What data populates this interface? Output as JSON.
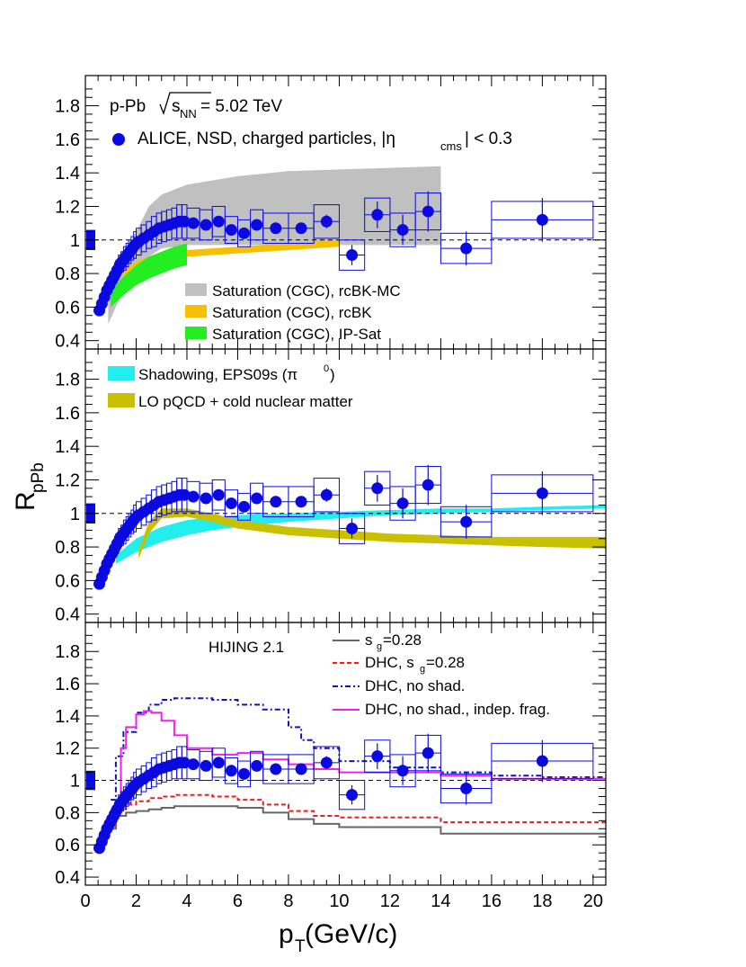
{
  "figure": {
    "y_axis_label": "R",
    "y_axis_label_sub": "pPb",
    "x_axis_label": "p",
    "x_axis_label_sub": "T",
    "x_axis_unit": " (GeV/c)"
  },
  "chart_data": [
    {
      "type": "scatter",
      "panel": "top",
      "xlim": [
        0,
        20.5
      ],
      "ylim": [
        0.35,
        1.98
      ],
      "y_ticks": [
        "0.4",
        "0.6",
        "0.8",
        "1",
        "1.2",
        "1.4",
        "1.6",
        "1.8"
      ],
      "reference_line": 1,
      "annotations": {
        "system": "p-Pb",
        "energy_var": "s",
        "energy_sub": "NN",
        "energy_value": " = 5.02 TeV",
        "data_label_pre": "ALICE, NSD, charged particles, |η",
        "data_label_sub": "cms",
        "data_label_post": "| < 0.3"
      },
      "bands": [
        {
          "name": "Saturation (CGC), rcBK-MC",
          "color": "#c0c0c0",
          "x": [
            0.9,
            1.5,
            2,
            2.5,
            3,
            4,
            6,
            8,
            10,
            12,
            14
          ],
          "lo": [
            0.5,
            0.7,
            0.8,
            0.9,
            0.95,
            0.97,
            0.97,
            0.97,
            0.97,
            0.97,
            0.97
          ],
          "hi": [
            0.65,
            0.9,
            1.05,
            1.2,
            1.27,
            1.33,
            1.38,
            1.41,
            1.42,
            1.43,
            1.44
          ]
        },
        {
          "name": "Saturation (CGC), rcBK",
          "color": "#f5c000",
          "x": [
            1.5,
            2,
            2.5,
            3,
            4,
            6,
            8,
            10
          ],
          "lo": [
            0.78,
            0.83,
            0.86,
            0.88,
            0.9,
            0.92,
            0.94,
            0.96
          ],
          "hi": [
            0.82,
            0.87,
            0.9,
            0.92,
            0.94,
            0.96,
            0.98,
            1.0
          ]
        },
        {
          "name": "Saturation (CGC), IP-Sat",
          "color": "#22ee22",
          "x": [
            1.0,
            1.5,
            2,
            2.5,
            3,
            3.5,
            4
          ],
          "lo": [
            0.6,
            0.67,
            0.73,
            0.77,
            0.8,
            0.83,
            0.85
          ],
          "hi": [
            0.7,
            0.78,
            0.85,
            0.9,
            0.93,
            0.96,
            0.98
          ]
        }
      ]
    },
    {
      "type": "scatter",
      "panel": "middle",
      "xlim": [
        0,
        20.5
      ],
      "ylim": [
        0.35,
        1.98
      ],
      "y_ticks": [
        "0.4",
        "0.6",
        "0.8",
        "1",
        "1.2",
        "1.4",
        "1.6",
        "1.8"
      ],
      "reference_line": 1,
      "bands": [
        {
          "name": "Shadowing, EPS09s (π",
          "name_sup": "0",
          "name_post": ")",
          "color": "#22eeee",
          "x": [
            1.2,
            2,
            3,
            4,
            5,
            6,
            8,
            10,
            12,
            14,
            16,
            18,
            20.5
          ],
          "lo": [
            0.7,
            0.77,
            0.83,
            0.87,
            0.9,
            0.92,
            0.95,
            0.97,
            0.99,
            1.0,
            1.01,
            1.02,
            1.03
          ],
          "hi": [
            0.75,
            0.85,
            0.92,
            0.96,
            0.98,
            0.99,
            1.0,
            1.01,
            1.02,
            1.03,
            1.03,
            1.04,
            1.05
          ]
        },
        {
          "name": "LO pQCD + cold nuclear matter",
          "color": "#c8c000",
          "x": [
            2.1,
            2.5,
            3,
            4,
            5,
            6,
            8,
            10,
            12,
            14,
            16,
            18,
            20.5
          ],
          "lo": [
            0.73,
            0.88,
            0.97,
            0.98,
            0.95,
            0.91,
            0.87,
            0.85,
            0.83,
            0.82,
            0.81,
            0.8,
            0.79
          ],
          "hi": [
            0.78,
            0.95,
            1.03,
            1.03,
            1.0,
            0.96,
            0.92,
            0.9,
            0.88,
            0.87,
            0.86,
            0.86,
            0.86
          ]
        }
      ]
    },
    {
      "type": "line",
      "panel": "bottom",
      "xlim": [
        0,
        20.5
      ],
      "ylim": [
        0.35,
        1.98
      ],
      "x_ticks": [
        "0",
        "2",
        "4",
        "6",
        "8",
        "10",
        "12",
        "14",
        "16",
        "18",
        "20"
      ],
      "y_ticks": [
        "0.4",
        "0.6",
        "0.8",
        "1",
        "1.2",
        "1.4",
        "1.6",
        "1.8"
      ],
      "reference_line": 1,
      "annotations": {
        "model": "HIJING 2.1"
      },
      "series": [
        {
          "name": "s",
          "name_sub": "g",
          "name_post": "=0.28",
          "color": "#666666",
          "style": "solid",
          "x": [
            0.8,
            1.2,
            1.6,
            2,
            2.5,
            3,
            3.5,
            4,
            5,
            6,
            7,
            8,
            9,
            10,
            12,
            14,
            16,
            18,
            20,
            20.5
          ],
          "y": [
            0.7,
            0.78,
            0.8,
            0.81,
            0.82,
            0.83,
            0.84,
            0.84,
            0.84,
            0.83,
            0.8,
            0.76,
            0.73,
            0.71,
            0.71,
            0.67,
            0.67,
            0.67,
            0.67,
            0.67
          ]
        },
        {
          "name": "DHC, s",
          "name_sub": "g",
          "name_post": "=0.28",
          "color": "#e82020",
          "style": "dash",
          "x": [
            0.8,
            1.2,
            1.6,
            2,
            2.5,
            3,
            3.5,
            4,
            5,
            6,
            7,
            8,
            9,
            10,
            12,
            14,
            16,
            18,
            20,
            20.5
          ],
          "y": [
            0.72,
            0.82,
            0.85,
            0.87,
            0.89,
            0.9,
            0.91,
            0.91,
            0.9,
            0.88,
            0.85,
            0.81,
            0.78,
            0.77,
            0.77,
            0.74,
            0.74,
            0.74,
            0.74,
            0.74
          ]
        },
        {
          "name": "DHC, no shad.",
          "color": "#1010c0",
          "style": "dashdot",
          "x": [
            1.0,
            1.2,
            1.5,
            2,
            2.5,
            3,
            3.5,
            4,
            5,
            6,
            7,
            8,
            8.5,
            9,
            10,
            12,
            14,
            16,
            18,
            20,
            20.5
          ],
          "y": [
            0.88,
            1.15,
            1.3,
            1.42,
            1.47,
            1.5,
            1.51,
            1.51,
            1.5,
            1.47,
            1.44,
            1.33,
            1.25,
            1.2,
            1.12,
            1.08,
            1.05,
            1.03,
            1.02,
            1.02,
            1.02
          ]
        },
        {
          "name": "DHC, no shad., indep. frag.",
          "color": "#ee22ee",
          "style": "solid",
          "x": [
            1.0,
            1.4,
            1.6,
            2,
            2.3,
            2.6,
            3,
            3.5,
            4,
            5,
            6,
            7,
            8,
            9,
            10,
            12,
            14,
            16,
            18,
            20,
            20.5
          ],
          "y": [
            0.82,
            1.2,
            1.33,
            1.41,
            1.43,
            1.42,
            1.37,
            1.28,
            1.2,
            1.16,
            1.17,
            1.13,
            1.1,
            1.07,
            1.05,
            1.05,
            1.03,
            1.01,
            1.01,
            1.01,
            1.01
          ]
        }
      ]
    }
  ],
  "alice_points": {
    "color": "#0a0ae0",
    "x": [
      0.55,
      0.65,
      0.75,
      0.85,
      0.95,
      1.05,
      1.15,
      1.25,
      1.35,
      1.45,
      1.55,
      1.65,
      1.75,
      1.85,
      1.95,
      2.1,
      2.3,
      2.5,
      2.7,
      2.9,
      3.1,
      3.3,
      3.5,
      3.7,
      3.9,
      4.25,
      4.75,
      5.25,
      5.75,
      6.25,
      6.75,
      7.5,
      8.5,
      9.5,
      10.5,
      11.5,
      12.5,
      13.5,
      15,
      18
    ],
    "y": [
      0.58,
      0.62,
      0.66,
      0.7,
      0.73,
      0.76,
      0.79,
      0.82,
      0.85,
      0.87,
      0.89,
      0.91,
      0.93,
      0.95,
      0.97,
      0.99,
      1.01,
      1.03,
      1.05,
      1.07,
      1.08,
      1.09,
      1.1,
      1.11,
      1.11,
      1.1,
      1.09,
      1.11,
      1.06,
      1.04,
      1.09,
      1.07,
      1.07,
      1.11,
      0.91,
      1.15,
      1.06,
      1.17,
      0.95,
      1.12
    ],
    "halfwidth": [
      0.05,
      0.05,
      0.05,
      0.05,
      0.05,
      0.05,
      0.05,
      0.05,
      0.05,
      0.05,
      0.05,
      0.05,
      0.05,
      0.05,
      0.05,
      0.1,
      0.1,
      0.1,
      0.1,
      0.1,
      0.1,
      0.1,
      0.1,
      0.1,
      0.1,
      0.25,
      0.25,
      0.25,
      0.25,
      0.25,
      0.25,
      0.5,
      0.5,
      0.5,
      0.5,
      0.5,
      0.5,
      0.5,
      1,
      2
    ],
    "syst": [
      0.03,
      0.03,
      0.04,
      0.04,
      0.05,
      0.05,
      0.05,
      0.06,
      0.06,
      0.06,
      0.07,
      0.07,
      0.07,
      0.07,
      0.08,
      0.08,
      0.08,
      0.08,
      0.09,
      0.09,
      0.09,
      0.09,
      0.09,
      0.1,
      0.1,
      0.09,
      0.09,
      0.09,
      0.08,
      0.08,
      0.09,
      0.09,
      0.09,
      0.1,
      0.09,
      0.1,
      0.1,
      0.11,
      0.09,
      0.11
    ],
    "stat": [
      0.01,
      0.01,
      0.01,
      0.01,
      0.01,
      0.01,
      0.01,
      0.01,
      0.01,
      0.01,
      0.01,
      0.01,
      0.01,
      0.01,
      0.01,
      0.01,
      0.01,
      0.01,
      0.01,
      0.01,
      0.01,
      0.01,
      0.01,
      0.01,
      0.01,
      0.01,
      0.01,
      0.02,
      0.02,
      0.02,
      0.02,
      0.03,
      0.03,
      0.04,
      0.06,
      0.08,
      0.09,
      0.12,
      0.1,
      0.13
    ],
    "norm_unc": 0.06
  }
}
